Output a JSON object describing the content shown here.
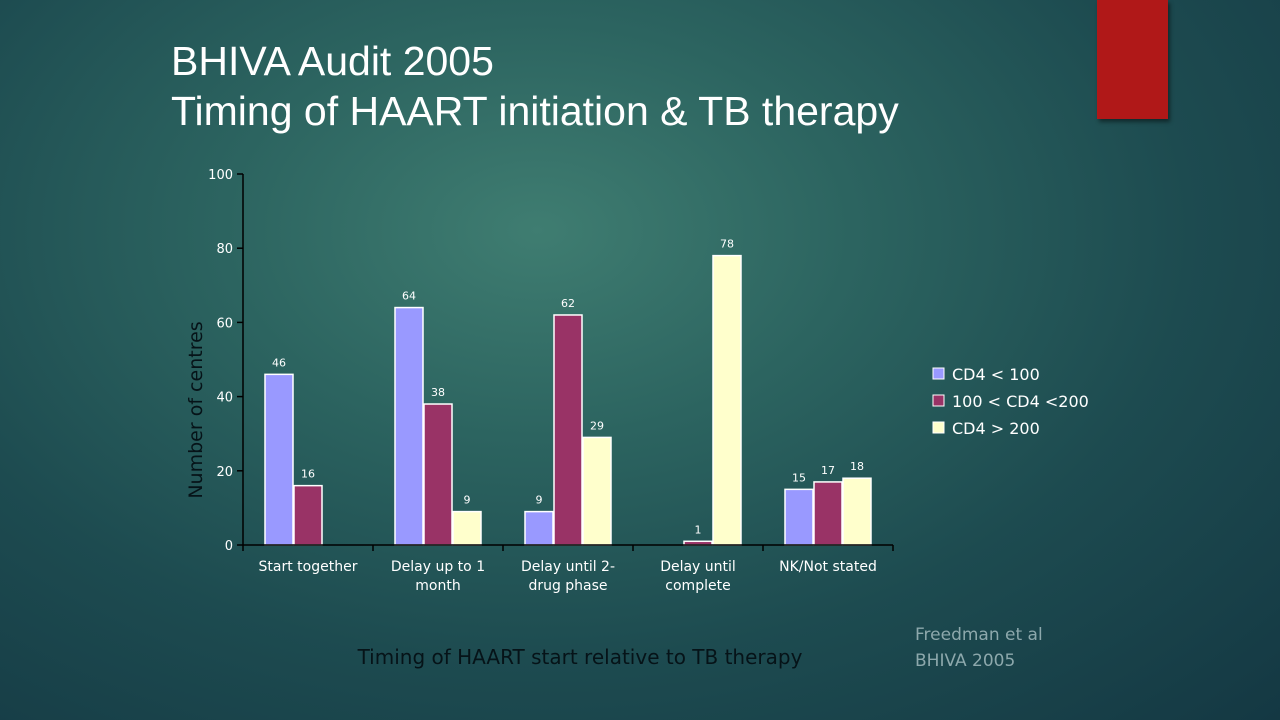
{
  "slide": {
    "title_line1": "BHIVA Audit 2005",
    "title_line2": "Timing of HAART initiation & TB therapy",
    "credit_line1": "Freedman et al",
    "credit_line2": "BHIVA 2005"
  },
  "chart_data": {
    "type": "bar",
    "title": "",
    "xlabel": "Timing of HAART start relative to TB therapy",
    "ylabel": "Number of centres",
    "ylim": [
      0,
      100
    ],
    "yticks": [
      0,
      20,
      40,
      60,
      80,
      100
    ],
    "grid": false,
    "legend_position": "right",
    "categories": [
      [
        "Start together"
      ],
      [
        "Delay up to 1",
        "month"
      ],
      [
        "Delay until 2-",
        "drug phase"
      ],
      [
        "Delay until",
        "complete"
      ],
      [
        "NK/Not stated"
      ]
    ],
    "series": [
      {
        "name": "CD4 < 100",
        "color": "#9999ff",
        "values": [
          46,
          64,
          9,
          null,
          15
        ]
      },
      {
        "name": "100 < CD4 <200",
        "color": "#993366",
        "values": [
          16,
          38,
          62,
          1,
          17
        ]
      },
      {
        "name": "CD4 > 200",
        "color": "#ffffcc",
        "values": [
          null,
          9,
          29,
          78,
          18
        ]
      }
    ]
  }
}
